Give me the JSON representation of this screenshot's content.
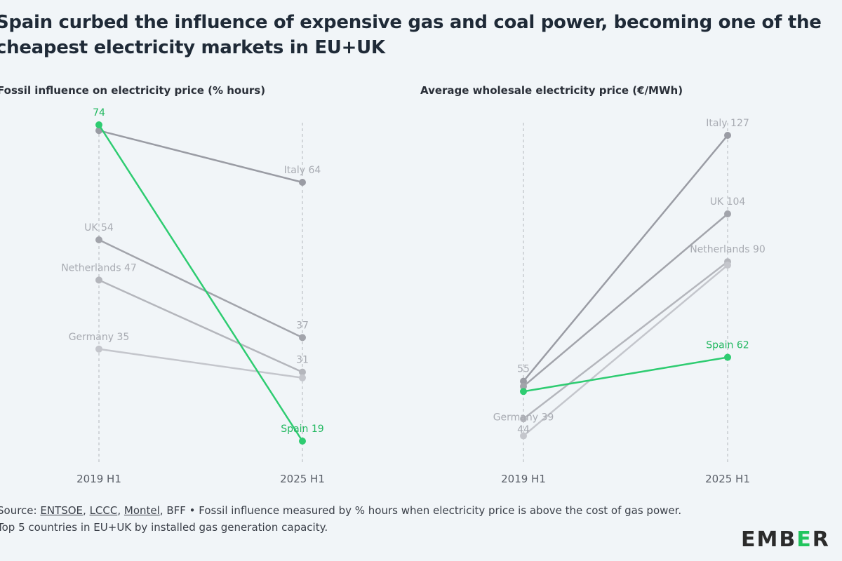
{
  "title": "Spain curbed the influence of expensive gas and coal power, becoming one of the cheapest electricity markets in EU+UK",
  "footer": {
    "source_prefix": "Source: ",
    "sources": [
      "ENTSOE",
      "LCCC",
      "Montel"
    ],
    "source_rest": ", BFF • Fossil influence measured by % hours when electricity price is above the cost of gas power.",
    "note": "Top 5 countries in EU+UK by installed gas generation capacity."
  },
  "logo": {
    "text_a": "EMB",
    "text_e": "E",
    "text_b": "R"
  },
  "colors": {
    "highlight": "#2ecc71",
    "grey": "#9a9ca4",
    "light": "#c4c6cc"
  },
  "chart_data": [
    {
      "type": "line",
      "title": "Fossil influence on electricity price (% hours)",
      "categories": [
        "2019 H1",
        "2025 H1"
      ],
      "series": [
        {
          "name": "Spain",
          "values": [
            74,
            19
          ],
          "highlight": true
        },
        {
          "name": "Italy",
          "values": [
            73,
            64
          ]
        },
        {
          "name": "UK",
          "values": [
            54,
            37
          ]
        },
        {
          "name": "Netherlands",
          "values": [
            47,
            31
          ]
        },
        {
          "name": "Germany",
          "values": [
            35,
            30
          ]
        }
      ],
      "labels": [
        {
          "text": "74",
          "series": "Spain",
          "at": 0
        },
        {
          "text": "UK 54",
          "series": "UK",
          "at": 0
        },
        {
          "text": "Netherlands 47",
          "series": "Netherlands",
          "at": 0
        },
        {
          "text": "Germany 35",
          "series": "Germany",
          "at": 0
        },
        {
          "text": "Italy 64",
          "series": "Italy",
          "at": 1
        },
        {
          "text": "37",
          "series": "UK",
          "at": 1
        },
        {
          "text": "31",
          "series": "Netherlands",
          "at": 1
        },
        {
          "text": "Spain 19",
          "series": "Spain",
          "at": 1
        }
      ]
    },
    {
      "type": "line",
      "title": "Average wholesale electricity price (€/MWh)",
      "categories": [
        "2019 H1",
        "2025 H1"
      ],
      "series": [
        {
          "name": "Italy",
          "values": [
            55,
            127
          ]
        },
        {
          "name": "UK",
          "values": [
            53.5,
            104
          ]
        },
        {
          "name": "Netherlands",
          "values": [
            44,
            90
          ]
        },
        {
          "name": "Germany",
          "values": [
            39,
            89
          ]
        },
        {
          "name": "Spain",
          "values": [
            52,
            62
          ],
          "highlight": true
        }
      ],
      "labels": [
        {
          "text": "55",
          "series": "Italy",
          "at": 0
        },
        {
          "text": "44",
          "series": "Netherlands",
          "at": 0
        },
        {
          "text": "Germany 39",
          "series": "Germany",
          "at": 0
        },
        {
          "text": "Italy 127",
          "series": "Italy",
          "at": 1
        },
        {
          "text": "UK 104",
          "series": "UK",
          "at": 1
        },
        {
          "text": "Netherlands 90",
          "series": "Netherlands",
          "at": 1
        },
        {
          "text": "Spain 62",
          "series": "Spain",
          "at": 1
        }
      ]
    }
  ]
}
